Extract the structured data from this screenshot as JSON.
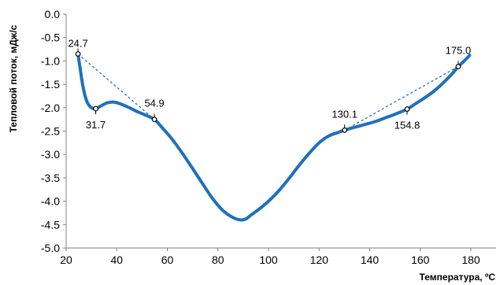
{
  "chart_data": {
    "type": "line",
    "xlabel": "Температура, ºС",
    "ylabel": "Тепловой поток, мДж/с",
    "xlim": [
      20,
      180
    ],
    "ylim": [
      -5.0,
      0.0
    ],
    "x_ticks": [
      "20",
      "40",
      "60",
      "80",
      "100",
      "120",
      "140",
      "160",
      "180"
    ],
    "y_ticks": [
      "0.0",
      "-0.5",
      "-1.0",
      "-1.5",
      "-2.0",
      "-2.5",
      "-3.0",
      "-3.5",
      "-4.0",
      "-4.5",
      "-5.0"
    ],
    "grid": false,
    "colors": {
      "curve": "#1f6fbf",
      "baseline": "#1f6fbf",
      "marker": "#000000"
    },
    "series": [
      {
        "x": [
          24.7,
          25.5,
          26.5,
          27.5,
          28.5,
          30.0,
          31.7,
          33.5,
          36.0,
          39.0,
          42.0,
          45.0,
          48.0,
          51.0,
          54.9,
          58.0,
          62.0,
          66.0,
          70.0,
          74.0,
          78.0,
          82.0,
          86.0,
          89.0,
          91.0,
          93.0,
          96.0,
          100.0,
          104.0,
          108.0,
          112.0,
          116.0,
          120.0,
          124.0,
          128.0,
          130.1,
          134.0,
          138.0,
          142.0,
          146.0,
          150.0,
          154.8,
          158.0,
          162.0,
          166.0,
          170.0,
          173.0,
          175.0,
          177.0,
          179.5
        ],
        "y": [
          -0.85,
          -1.15,
          -1.5,
          -1.75,
          -1.9,
          -2.0,
          -2.02,
          -1.97,
          -1.9,
          -1.88,
          -1.93,
          -2.0,
          -2.08,
          -2.15,
          -2.25,
          -2.43,
          -2.68,
          -2.98,
          -3.3,
          -3.63,
          -3.95,
          -4.2,
          -4.35,
          -4.4,
          -4.38,
          -4.3,
          -4.18,
          -4.0,
          -3.78,
          -3.52,
          -3.24,
          -2.98,
          -2.75,
          -2.6,
          -2.52,
          -2.48,
          -2.42,
          -2.36,
          -2.3,
          -2.22,
          -2.14,
          -2.03,
          -1.92,
          -1.78,
          -1.62,
          -1.42,
          -1.25,
          -1.12,
          -1.02,
          -0.88
        ]
      }
    ],
    "baselines": [
      {
        "x": [
          24.7,
          54.9
        ],
        "y": [
          -0.85,
          -2.25
        ]
      },
      {
        "x": [
          130.1,
          175.0
        ],
        "y": [
          -2.48,
          -1.12
        ]
      }
    ],
    "annotations": [
      {
        "label": "24.7",
        "x": 24.7,
        "y": -0.85
      },
      {
        "label": "31.7",
        "x": 31.7,
        "y": -2.02
      },
      {
        "label": "54.9",
        "x": 54.9,
        "y": -2.25
      },
      {
        "label": "130.1",
        "x": 130.1,
        "y": -2.48
      },
      {
        "label": "154.8",
        "x": 154.8,
        "y": -2.03
      },
      {
        "label": "175.0",
        "x": 175.0,
        "y": -1.12
      }
    ]
  }
}
